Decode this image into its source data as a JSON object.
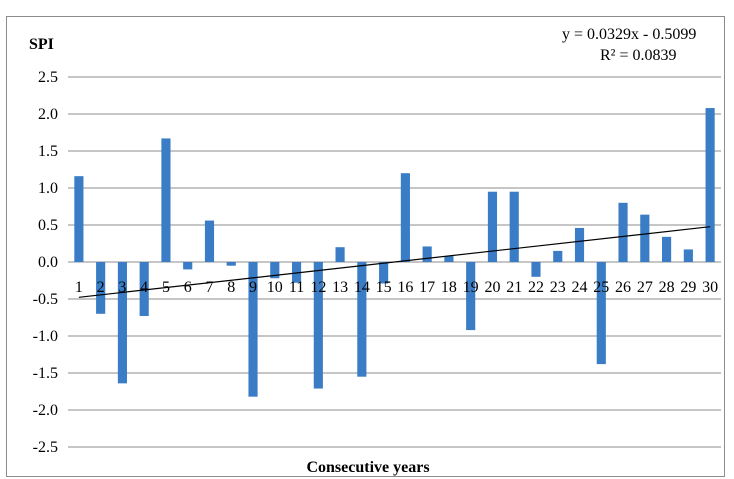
{
  "chart_data": {
    "type": "bar",
    "ylabel": "SPI",
    "xlabel": "Consecutive years",
    "ylim": [
      -2.5,
      2.5
    ],
    "yticks": [
      "2.5",
      "2.0",
      "1.5",
      "1.0",
      "0.5",
      "0.0",
      "-0.5",
      "-1.0",
      "-1.5",
      "-2.0",
      "-2.5"
    ],
    "categories": [
      "1",
      "2",
      "3",
      "4",
      "5",
      "6",
      "7",
      "8",
      "9",
      "10",
      "11",
      "12",
      "13",
      "14",
      "15",
      "16",
      "17",
      "18",
      "19",
      "20",
      "21",
      "22",
      "23",
      "24",
      "25",
      "26",
      "27",
      "28",
      "29",
      "30"
    ],
    "values": [
      1.16,
      -0.7,
      -1.64,
      -0.73,
      1.67,
      -0.1,
      0.56,
      -0.05,
      -1.82,
      -0.22,
      -0.28,
      -1.71,
      0.2,
      -1.55,
      -0.29,
      1.2,
      0.21,
      0.08,
      -0.92,
      0.95,
      0.95,
      -0.2,
      0.15,
      0.46,
      -1.38,
      0.8,
      0.64,
      0.34,
      0.17,
      2.08
    ],
    "bar_color": "#3a7dc6",
    "grid": true,
    "grid_color": "#8c8c8c",
    "trendline": {
      "equation": "y = 0.0329x  - 0.5099",
      "r_squared": "R² = 0.0839",
      "slope": 0.0329,
      "intercept": -0.5099
    }
  }
}
